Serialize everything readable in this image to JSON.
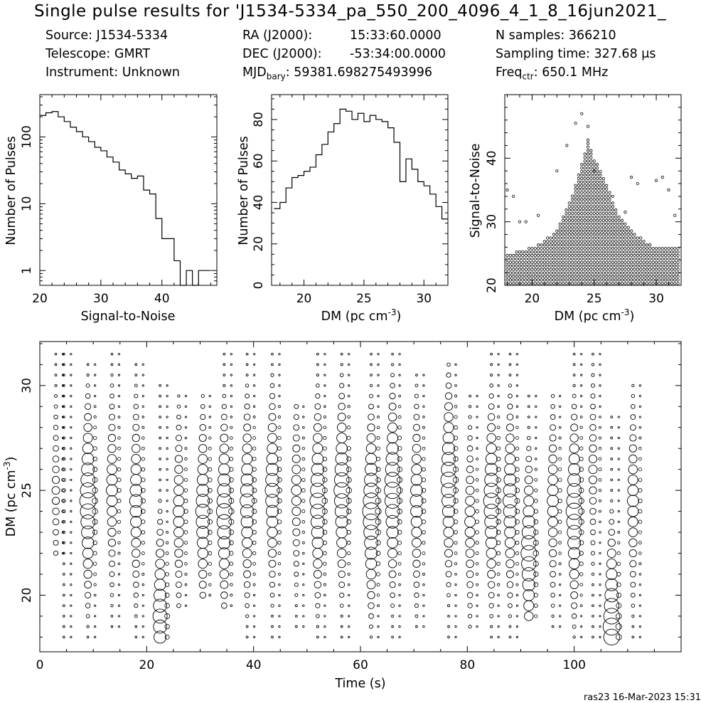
{
  "header": {
    "title": "Single pulse results for 'J1534-5334_pa_550_200_4096_4_1_8_16jun2021_",
    "source": "Source: J1534-5334",
    "telescope": "Telescope: GMRT",
    "instrument": "Instrument: Unknown",
    "ra_label": "RA (J2000):",
    "ra_value": "15:33:60.0000",
    "dec_label": "DEC (J2000):",
    "dec_value": "-53:34:00.0000",
    "mjd_label": "MJD",
    "mjd_sub": "bary",
    "mjd_value": ": 59381.698275493996",
    "nsamples": "N samples: 366210",
    "sampling_time": "Sampling time: 327.68 μs",
    "freq_label": "Freq",
    "freq_sub": "ctr",
    "freq_value": ": 650.1 MHz"
  },
  "footer": {
    "stamp": "ras23 16-Mar-2023 15:31"
  },
  "chart_data": [
    {
      "type": "line",
      "name": "snr-histogram",
      "xlabel": "Signal-to-Noise",
      "ylabel": "Number of Pulses",
      "xlim": [
        20,
        49
      ],
      "ylim": [
        0.6,
        430
      ],
      "yscale": "log",
      "xticks": [
        20,
        30,
        40
      ],
      "yticks": [
        1,
        10,
        100
      ],
      "bin_edges": [
        20,
        21,
        22,
        23,
        24,
        25,
        26,
        27,
        28,
        29,
        30,
        31,
        32,
        33,
        34,
        35,
        36,
        37,
        38,
        39,
        40,
        41,
        42,
        43,
        44,
        45,
        46,
        47,
        48
      ],
      "counts": [
        210,
        230,
        240,
        200,
        170,
        140,
        120,
        100,
        85,
        70,
        62,
        50,
        42,
        32,
        28,
        24,
        26,
        16,
        14,
        6,
        3,
        3,
        1.4,
        0.5,
        1,
        0.5,
        1,
        1
      ]
    },
    {
      "type": "line",
      "name": "dm-histogram",
      "xlabel": "DM (pc cm^-3)",
      "ylabel": "Number of Pulses",
      "xlim": [
        17.3,
        32
      ],
      "ylim": [
        0,
        92
      ],
      "xticks": [
        20,
        25,
        30
      ],
      "yticks": [
        0,
        20,
        40,
        60,
        80
      ],
      "bin_edges": [
        17.5,
        18,
        18.5,
        19,
        19.5,
        20,
        20.5,
        21,
        21.5,
        22,
        22.5,
        23,
        23.5,
        24,
        24.5,
        25,
        25.5,
        26,
        26.5,
        27,
        27.5,
        28,
        28.5,
        29,
        29.5,
        30,
        30.5,
        31,
        31.5,
        32
      ],
      "counts": [
        37,
        40,
        47,
        52,
        53,
        55,
        57,
        63,
        68,
        74,
        78,
        85,
        84,
        80,
        83,
        79,
        82,
        80,
        79,
        76,
        69,
        50,
        61,
        56,
        50,
        48,
        44,
        38,
        32
      ]
    },
    {
      "type": "scatter",
      "name": "dm-vs-snr",
      "xlabel": "DM (pc cm^-3)",
      "ylabel": "Signal-to-Noise",
      "xlim": [
        17.8,
        32
      ],
      "ylim": [
        20,
        50
      ],
      "xticks": [
        20,
        25,
        30
      ],
      "yticks": [
        20,
        30,
        40
      ],
      "dm_step": 0.25,
      "snr_min": 20,
      "snr_max_envelope": [
        [
          18,
          25
        ],
        [
          19,
          25.5
        ],
        [
          20,
          26
        ],
        [
          21,
          27
        ],
        [
          22,
          29
        ],
        [
          23,
          33
        ],
        [
          24,
          39
        ],
        [
          24.5,
          43
        ],
        [
          25,
          40
        ],
        [
          26,
          36
        ],
        [
          27,
          31
        ],
        [
          28,
          29
        ],
        [
          29,
          27
        ],
        [
          30,
          26
        ],
        [
          31,
          26
        ],
        [
          32,
          26
        ]
      ],
      "outliers": [
        [
          18,
          35
        ],
        [
          18.5,
          34
        ],
        [
          19,
          30
        ],
        [
          19.5,
          30
        ],
        [
          20.5,
          31
        ],
        [
          22,
          38
        ],
        [
          22.8,
          42
        ],
        [
          23.5,
          45.5
        ],
        [
          24,
          47
        ],
        [
          24.5,
          45
        ],
        [
          25,
          38
        ],
        [
          26.5,
          34
        ],
        [
          27.5,
          31.5
        ],
        [
          28,
          37
        ],
        [
          28.5,
          36
        ],
        [
          30,
          36.5
        ],
        [
          30.5,
          37
        ],
        [
          31,
          35
        ],
        [
          31.5,
          31
        ]
      ]
    },
    {
      "type": "scatter",
      "name": "dm-vs-time",
      "xlabel": "Time (s)",
      "ylabel": "DM (pc cm^-3)",
      "xlim": [
        0,
        120
      ],
      "ylim": [
        17.3,
        32.1
      ],
      "xticks": [
        0,
        20,
        40,
        60,
        80,
        100
      ],
      "yticks": [
        20,
        25,
        30
      ],
      "marker_size_encodes": "Signal-to-Noise",
      "pulse_columns": [
        {
          "t": 3,
          "lo": 22,
          "hi": 31.5,
          "peak": 25,
          "strength": 1.1
        },
        {
          "t": 4.5,
          "lo": 18,
          "hi": 31.5,
          "peak": 25,
          "strength": 0.5
        },
        {
          "t": 9,
          "lo": 18,
          "hi": 31,
          "peak": 24.5,
          "strength": 2.3
        },
        {
          "t": 13.5,
          "lo": 18.5,
          "hi": 31.5,
          "peak": 25,
          "strength": 1.6
        },
        {
          "t": 18,
          "lo": 18,
          "hi": 31,
          "peak": 24.5,
          "strength": 1.8
        },
        {
          "t": 22.5,
          "lo": 18,
          "hi": 30,
          "peak": 19,
          "strength": 2.0
        },
        {
          "t": 26,
          "lo": 19.5,
          "hi": 29.5,
          "peak": 24,
          "strength": 1.6
        },
        {
          "t": 30.5,
          "lo": 20,
          "hi": 29.5,
          "peak": 24,
          "strength": 2.0
        },
        {
          "t": 34.5,
          "lo": 19.5,
          "hi": 31.5,
          "peak": 24,
          "strength": 2.2
        },
        {
          "t": 38.8,
          "lo": 18,
          "hi": 31.5,
          "peak": 24.5,
          "strength": 2.0
        },
        {
          "t": 43.5,
          "lo": 18,
          "hi": 31.5,
          "peak": 25,
          "strength": 2.0
        },
        {
          "t": 48,
          "lo": 18.5,
          "hi": 29,
          "peak": 25,
          "strength": 1.4
        },
        {
          "t": 52,
          "lo": 18,
          "hi": 31.5,
          "peak": 24.5,
          "strength": 2.2
        },
        {
          "t": 56.5,
          "lo": 18,
          "hi": 31.5,
          "peak": 25,
          "strength": 2.2
        },
        {
          "t": 62,
          "lo": 18,
          "hi": 31.5,
          "peak": 24,
          "strength": 2.4
        },
        {
          "t": 66,
          "lo": 18,
          "hi": 31.5,
          "peak": 25,
          "strength": 2.3
        },
        {
          "t": 70.5,
          "lo": 18.5,
          "hi": 30.5,
          "peak": 24.5,
          "strength": 1.8
        },
        {
          "t": 76.5,
          "lo": 18,
          "hi": 31,
          "peak": 25.5,
          "strength": 2.2
        },
        {
          "t": 80.5,
          "lo": 18.5,
          "hi": 29.5,
          "peak": 23.5,
          "strength": 1.5
        },
        {
          "t": 84.5,
          "lo": 18,
          "hi": 31.5,
          "peak": 24.5,
          "strength": 2.2
        },
        {
          "t": 88,
          "lo": 18,
          "hi": 31.5,
          "peak": 24.5,
          "strength": 2.0
        },
        {
          "t": 91.5,
          "lo": 19,
          "hi": 29.5,
          "peak": 22,
          "strength": 2.2
        },
        {
          "t": 96,
          "lo": 18.5,
          "hi": 29.5,
          "peak": 24.5,
          "strength": 1.6
        },
        {
          "t": 100,
          "lo": 18,
          "hi": 31.5,
          "peak": 24,
          "strength": 2.3
        },
        {
          "t": 103.5,
          "lo": 18,
          "hi": 31.5,
          "peak": 26,
          "strength": 1.2
        },
        {
          "t": 107,
          "lo": 18,
          "hi": 28.5,
          "peak": 18.5,
          "strength": 2.4
        },
        {
          "t": 111,
          "lo": 18,
          "hi": 30,
          "peak": 24.5,
          "strength": 1.6
        }
      ]
    }
  ]
}
